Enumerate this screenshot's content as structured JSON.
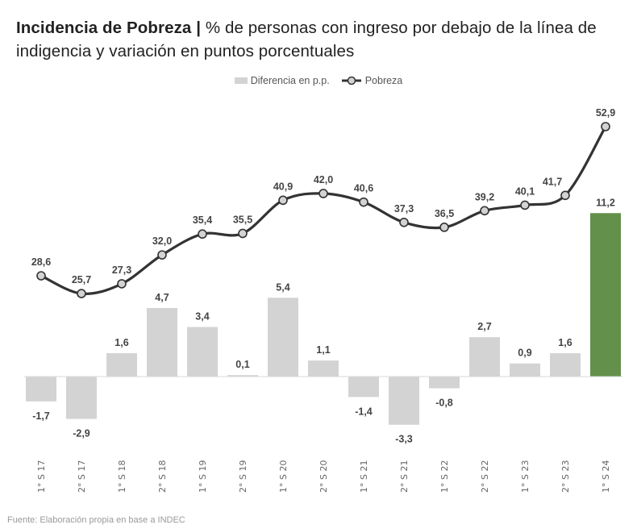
{
  "title": {
    "bold": "Incidencia de Pobreza |",
    "rest": " % de personas con ingreso por debajo de la línea de indigencia y variación en puntos porcentuales"
  },
  "legend": {
    "bar_label": "Diferencia en p.p.",
    "line_label": "Pobreza"
  },
  "footer": "Fuente: Elaboración propia en base a INDEC",
  "colors": {
    "bar": "#d3d3d3",
    "highlight_bar": "#63904a",
    "line": "#333333",
    "marker_fill": "#d3d3d3",
    "label": "#444444"
  },
  "chart_data": {
    "type": "bar",
    "title": "Incidencia de Pobreza | % de personas con ingreso por debajo de la línea de indigencia y variación en puntos porcentuales",
    "categories": [
      "1° S 17",
      "2° S 17",
      "1° S 18",
      "2° S 18",
      "1° S 19",
      "2° S 19",
      "1° S 20",
      "2° S 20",
      "1° S 21",
      "2° S 21",
      "1° S 22",
      "2° S 22",
      "1° S 23",
      "2° S 23",
      "1° S 24"
    ],
    "series": [
      {
        "name": "Diferencia en p.p.",
        "type": "bar",
        "values": [
          -1.7,
          -2.9,
          1.6,
          4.7,
          3.4,
          0.1,
          5.4,
          1.1,
          -1.4,
          -3.3,
          -0.8,
          2.7,
          0.9,
          1.6,
          11.2
        ],
        "labels": [
          "-1,7",
          "-2,9",
          "1,6",
          "4,7",
          "3,4",
          "0,1",
          "5,4",
          "1,1",
          "-1,4",
          "-3,3",
          "-0,8",
          "2,7",
          "0,9",
          "1,6",
          "11,2"
        ],
        "highlight_index": 14
      },
      {
        "name": "Pobreza",
        "type": "line",
        "smooth": true,
        "markers": true,
        "values": [
          28.6,
          25.7,
          27.3,
          32.0,
          35.4,
          35.5,
          40.9,
          42.0,
          40.6,
          37.3,
          36.5,
          39.2,
          40.1,
          41.7,
          52.9
        ],
        "labels": [
          "28,6",
          "25,7",
          "27,3",
          "32,0",
          "35,4",
          "35,5",
          "40,9",
          "42,0",
          "40,6",
          "37,3",
          "36,5",
          "39,2",
          "40,1",
          "41,7",
          "52,9"
        ]
      }
    ],
    "xlabel": "",
    "ylabel": "",
    "xtick_rotation": -90,
    "grid": false,
    "legend_position": "top-center",
    "source": "Fuente: Elaboración propia en base a INDEC"
  }
}
